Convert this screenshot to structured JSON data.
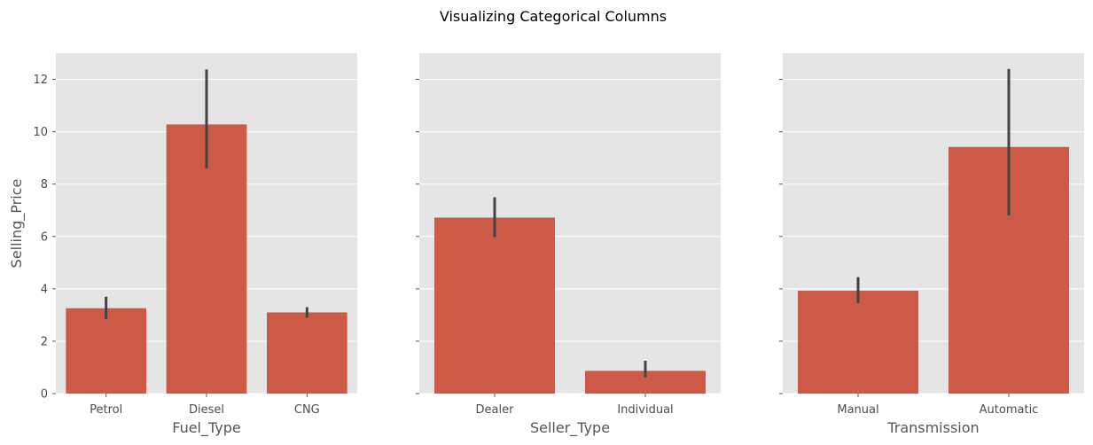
{
  "figure": {
    "suptitle": "Visualizing Categorical Columns",
    "background_color": "#ffffff",
    "panel_color": "#e5e5e5",
    "bar_color": "#cc5a47",
    "error_color": "#424242"
  },
  "chart_data": [
    {
      "type": "bar",
      "title": "",
      "xlabel": "Fuel_Type",
      "ylabel": "Selling_Price",
      "categories": [
        "Petrol",
        "Diesel",
        "CNG"
      ],
      "values": [
        3.26,
        10.28,
        3.1
      ],
      "error_low": [
        2.85,
        8.6,
        2.9
      ],
      "error_high": [
        3.7,
        12.38,
        3.3
      ],
      "ylim": [
        0,
        13
      ],
      "yticks": [
        0,
        2,
        4,
        6,
        8,
        10,
        12
      ],
      "grid": true
    },
    {
      "type": "bar",
      "title": "",
      "xlabel": "Seller_Type",
      "ylabel": "",
      "categories": [
        "Dealer",
        "Individual"
      ],
      "values": [
        6.72,
        0.87
      ],
      "error_low": [
        5.98,
        0.63
      ],
      "error_high": [
        7.5,
        1.25
      ],
      "ylim": [
        0,
        13
      ],
      "yticks": [
        0,
        2,
        4,
        6,
        8,
        10,
        12
      ],
      "grid": true
    },
    {
      "type": "bar",
      "title": "",
      "xlabel": "Transmission",
      "ylabel": "",
      "categories": [
        "Manual",
        "Automatic"
      ],
      "values": [
        3.93,
        9.42
      ],
      "error_low": [
        3.45,
        6.8
      ],
      "error_high": [
        4.45,
        12.4
      ],
      "ylim": [
        0,
        13
      ],
      "yticks": [
        0,
        2,
        4,
        6,
        8,
        10,
        12
      ],
      "grid": true
    }
  ]
}
